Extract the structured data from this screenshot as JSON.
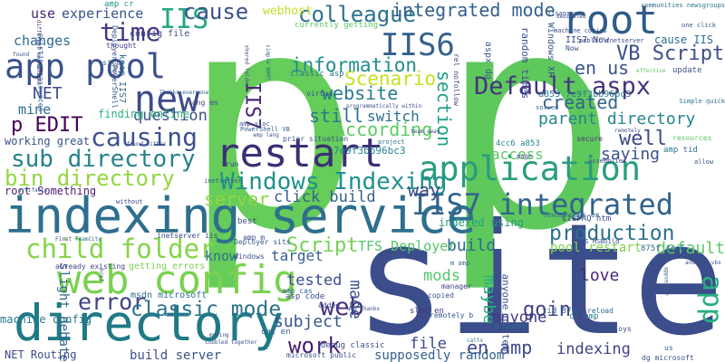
{
  "words": [
    {
      "text": "site",
      "color": "#3b4d8a"
    },
    {
      "text": "p",
      "color": "#66cc5a"
    },
    {
      "text": "p",
      "color": "#5fc85d"
    },
    {
      "text": "indexing service",
      "color": "#2e6f8e"
    },
    {
      "text": "directory",
      "color": "#1f7a86"
    },
    {
      "text": "web config",
      "color": "#7ad151"
    },
    {
      "text": "application",
      "color": "#2a9d7f"
    },
    {
      "text": "restart",
      "color": "#3c2f74"
    },
    {
      "text": "IIS7 integrated",
      "color": "#33638d"
    },
    {
      "text": "Windows Indexing",
      "color": "#21918c"
    },
    {
      "text": "root",
      "color": "#2f5c8a"
    },
    {
      "text": "new",
      "color": "#3e4a89"
    },
    {
      "text": "app pool",
      "color": "#3b528b"
    },
    {
      "text": "IIS6",
      "color": "#35608d"
    },
    {
      "text": "Default aspx",
      "color": "#46337e"
    },
    {
      "text": "VB Script",
      "color": "#3d4e8a"
    },
    {
      "text": "colleague",
      "color": "#2c728e"
    },
    {
      "text": "IIS",
      "color": "#22a884"
    },
    {
      "text": "cause",
      "color": "#3a548c"
    },
    {
      "text": "time",
      "color": "#443983"
    },
    {
      "text": "sub directory",
      "color": "#26828e"
    },
    {
      "text": "bin directory",
      "color": "#93d741"
    },
    {
      "text": "child folder",
      "color": "#84d44b"
    },
    {
      "text": "error",
      "color": "#414487"
    },
    {
      "text": "causing",
      "color": "#3b528b"
    },
    {
      "text": "classic mode",
      "color": "#2c728e"
    },
    {
      "text": "production",
      "color": "#2d708e"
    },
    {
      "text": "Scenario",
      "color": "#c8e020"
    },
    {
      "text": "information",
      "color": "#228d8d"
    },
    {
      "text": "website",
      "color": "#287c8e"
    },
    {
      "text": "integrated mode",
      "color": "#355f8d"
    },
    {
      "text": "According",
      "color": "#5ec962"
    },
    {
      "text": "work",
      "color": "#481f70"
    },
    {
      "text": "web",
      "color": "#46327e"
    },
    {
      "text": "Script",
      "color": "#75d054"
    },
    {
      "text": "en us",
      "color": "#3a538b"
    },
    {
      "text": "well",
      "color": "#3f4788"
    },
    {
      "text": "app",
      "color": "#29af7f"
    },
    {
      "text": "en amp",
      "color": "#3e4989"
    },
    {
      "text": "going",
      "color": "#404588"
    },
    {
      "text": "p EDIT",
      "color": "#440154"
    },
    {
      "text": "still",
      "color": "#2a778e"
    },
    {
      "text": "created",
      "color": "#32658e"
    },
    {
      "text": "section",
      "color": "#1fa187"
    },
    {
      "text": "parent directory",
      "color": "#24868e"
    },
    {
      "text": "server",
      "color": "#8fd744"
    },
    {
      "text": "way",
      "color": "#3e4c8a"
    },
    {
      "text": "click build",
      "color": "#33638d"
    },
    {
      "text": "IIS7",
      "color": "#482576"
    },
    {
      "text": "saying",
      "color": "#3a548c"
    },
    {
      "text": "default",
      "color": "#5ac864"
    },
    {
      "text": "build",
      "color": "#31688e"
    },
    {
      "text": "maybe",
      "color": "#2ab07f"
    },
    {
      "text": "made",
      "color": "#3b528b"
    },
    {
      "text": "mods",
      "color": "#56c667"
    },
    {
      "text": "TFS Deployer",
      "color": "#52c569"
    },
    {
      "text": "target",
      "color": "#355f8d"
    },
    {
      "text": "love",
      "color": "#482878"
    },
    {
      "text": "tested",
      "color": "#3d4d8a"
    },
    {
      "text": "subject",
      "color": "#38588c"
    },
    {
      "text": "file",
      "color": "#3f4889"
    },
    {
      "text": "anyone",
      "color": "#443a83"
    },
    {
      "text": "indexing",
      "color": "#404688"
    },
    {
      "text": "question",
      "color": "#3b528b"
    },
    {
      "text": "NET",
      "color": "#3e4a89"
    },
    {
      "text": "mine",
      "color": "#2f6c8e"
    },
    {
      "text": "changes",
      "color": "#31688e"
    },
    {
      "text": "experience",
      "color": "#3b528b"
    },
    {
      "text": "use",
      "color": "#482878"
    },
    {
      "text": "cause IIS",
      "color": "#2e6e8e"
    },
    {
      "text": "pool restart",
      "color": "#7fd34e"
    },
    {
      "text": "access",
      "color": "#5ec962"
    },
    {
      "text": "supposedly random",
      "color": "#355f8d"
    },
    {
      "text": "switch",
      "color": "#2d718e"
    },
    {
      "text": "Windows XP",
      "color": "#38588c"
    },
    {
      "text": "webhost",
      "color": "#c0df25"
    },
    {
      "text": "know",
      "color": "#2b758e"
    },
    {
      "text": "slight debate",
      "color": "#32658e"
    },
    {
      "text": "finding online",
      "color": "#2db27d"
    },
    {
      "text": "working great",
      "color": "#3b528b"
    },
    {
      "text": "root Something",
      "color": "#481f70"
    },
    {
      "text": "machine config",
      "color": "#2a788e"
    },
    {
      "text": "build server",
      "color": "#3b528b"
    },
    {
      "text": "NET Routing",
      "color": "#3e4c8a"
    },
    {
      "text": "debug classic",
      "color": "#3e4a89"
    },
    {
      "text": "anyone gotten",
      "color": "#3b528b"
    },
    {
      "text": "random times",
      "color": "#3c4f8a"
    },
    {
      "text": "aspx dg",
      "color": "#38598c"
    },
    {
      "text": "msdn microsoft",
      "color": "#2c718e"
    },
    {
      "text": "getting errors",
      "color": "#7ad151"
    },
    {
      "text": "config file",
      "color": "#3e4989"
    },
    {
      "text": "a853 7e9f3bb96bc3",
      "color": "#287d8e"
    },
    {
      "text": "7e9f3bb96bc3",
      "color": "#26818e"
    },
    {
      "text": "4cc6 a853",
      "color": "#24868e"
    },
    {
      "text": "currently getting",
      "color": "#5ec962"
    },
    {
      "text": "classic asp",
      "color": "#2a768e"
    },
    {
      "text": "keep IIS7",
      "color": "#306a8e"
    },
    {
      "text": "Deployer PowerShell",
      "color": "#3b528b"
    },
    {
      "text": "amp cr",
      "color": "#1f948c"
    },
    {
      "text": "thought",
      "color": "#404588"
    },
    {
      "text": "different mechanisms",
      "color": "#482071"
    },
    {
      "text": "IIS7 Now",
      "color": "#3e4a89"
    },
    {
      "text": "tid 875f",
      "color": "#33638d"
    },
    {
      "text": "875f 4cc6",
      "color": "#2e6f8e"
    },
    {
      "text": "TFS MSBuild",
      "color": "#3b528b"
    },
    {
      "text": "IISFAQ htm",
      "color": "#3e4989"
    },
    {
      "text": "amp tid",
      "color": "#2c728e"
    },
    {
      "text": "newsgroups en",
      "color": "#2e6e8e"
    },
    {
      "text": "update",
      "color": "#3b528b"
    },
    {
      "text": "secure",
      "color": "#46337e"
    },
    {
      "text": "resources",
      "color": "#5ac864"
    },
    {
      "text": "asp code",
      "color": "#3e4a89"
    },
    {
      "text": "amp cas",
      "color": "#32658e"
    },
    {
      "text": "sloc en",
      "color": "#443983"
    },
    {
      "text": "remotely b",
      "color": "#38588c"
    },
    {
      "text": "copied",
      "color": "#3b528b"
    },
    {
      "text": "manager",
      "color": "#404588"
    },
    {
      "text": "cr amp",
      "color": "#2c738e"
    },
    {
      "text": "reload",
      "color": "#31688e"
    },
    {
      "text": "deploys",
      "color": "#3b528b"
    },
    {
      "text": "microsoft public",
      "color": "#3e4a89"
    },
    {
      "text": "cat en",
      "color": "#355f8d"
    },
    {
      "text": "added",
      "color": "#3e4989"
    },
    {
      "text": "virtual",
      "color": "#38588c"
    },
    {
      "text": "prior situation",
      "color": "#3b528b"
    },
    {
      "text": "inetserver iis",
      "color": "#3e4a89"
    },
    {
      "text": "Deployer sits",
      "color": "#38598c"
    },
    {
      "text": "already existing",
      "color": "#414487"
    },
    {
      "text": "found either",
      "color": "#3b528b"
    },
    {
      "text": "project",
      "color": "#2d718e"
    },
    {
      "text": "team away",
      "color": "#414487"
    },
    {
      "text": "inetserver",
      "color": "#33638d"
    },
    {
      "text": "calls",
      "color": "#2c728e"
    },
    {
      "text": "horror",
      "color": "#3b528b"
    },
    {
      "text": "found",
      "color": "#3b528b"
    },
    {
      "text": "lang en",
      "color": "#3e4a89"
    },
    {
      "text": "existing resources",
      "color": "#33638d"
    },
    {
      "text": "indexed using",
      "color": "#2a9d7f"
    },
    {
      "text": "amp sloc",
      "color": "#3b528b"
    },
    {
      "text": "PowerShell VB",
      "color": "#355f8d"
    },
    {
      "text": "run",
      "color": "#414487"
    },
    {
      "text": "Windows",
      "color": "#3b528b"
    },
    {
      "text": "best",
      "color": "#3e4989"
    },
    {
      "text": "amp m",
      "color": "#3b528b"
    },
    {
      "text": "b update",
      "color": "#2d708e"
    },
    {
      "text": "us",
      "color": "#33638d"
    },
    {
      "text": "dg microsoft",
      "color": "#3b528b"
    },
    {
      "text": "moving",
      "color": "#3e4989"
    },
    {
      "text": "First",
      "color": "#414487"
    },
    {
      "text": "TeamCity",
      "color": "#33638d"
    },
    {
      "text": "cobbled together",
      "color": "#3b528b"
    },
    {
      "text": "without",
      "color": "#3e4a89"
    },
    {
      "text": "artifacts",
      "color": "#355f8d"
    },
    {
      "text": "Simple quick",
      "color": "#2c728e"
    },
    {
      "text": "one click",
      "color": "#38588c"
    },
    {
      "text": "machine copies",
      "color": "#3b528b"
    },
    {
      "text": "public inetserver",
      "color": "#3e4989"
    },
    {
      "text": "solved",
      "color": "#33638d"
    },
    {
      "text": "allow",
      "color": "#3b528b"
    },
    {
      "text": "assemblies",
      "color": "#3e4a89"
    },
    {
      "text": "communities newsgroups",
      "color": "#2c728e"
    },
    {
      "text": "iisanswers",
      "color": "#3b528b"
    },
    {
      "text": "page",
      "color": "#3e4989"
    },
    {
      "text": "silly",
      "color": "#33638d"
    },
    {
      "text": "brand",
      "color": "#3b528b"
    },
    {
      "text": "Thanks everyone",
      "color": "#38598c"
    },
    {
      "text": "amp lang",
      "color": "#3b528b"
    },
    {
      "text": "shared folder",
      "color": "#3e4a89"
    },
    {
      "text": "simple WAMT",
      "color": "#2c728e"
    },
    {
      "text": "programmatically within",
      "color": "#3b528b"
    },
    {
      "text": "rel nofollow",
      "color": "#3e4989"
    },
    {
      "text": "m amp",
      "color": "#33638d"
    },
    {
      "text": "href",
      "color": "#3b528b"
    },
    {
      "text": "WAS Thanks",
      "color": "#3e4a89"
    },
    {
      "text": "Now",
      "color": "#3b528b"
    },
    {
      "text": "dedicated",
      "color": "#3e4989"
    },
    {
      "text": "effective",
      "color": "#5ec962"
    },
    {
      "text": "another vbs",
      "color": "#3b528b"
    },
    {
      "text": "remotely",
      "color": "#3e4a89"
    },
    {
      "text": "appserver",
      "color": "#33638d"
    }
  ]
}
